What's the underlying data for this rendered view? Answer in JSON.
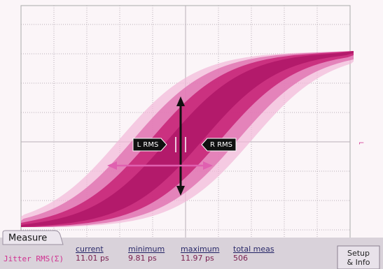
{
  "screen": {
    "markers": {
      "left": "L RMS",
      "right": "R RMS"
    }
  },
  "measure": {
    "tab": "Measure",
    "name": "Jitter RMS(Σ)",
    "columns": [
      {
        "header": "current",
        "value": "11.01 ps"
      },
      {
        "header": "minimum",
        "value": "9.81 ps"
      },
      {
        "header": "maximum",
        "value": "11.97 ps"
      },
      {
        "header": "total meas",
        "value": "506"
      }
    ]
  },
  "button": {
    "lines": [
      "Setup",
      "& Info"
    ]
  }
}
